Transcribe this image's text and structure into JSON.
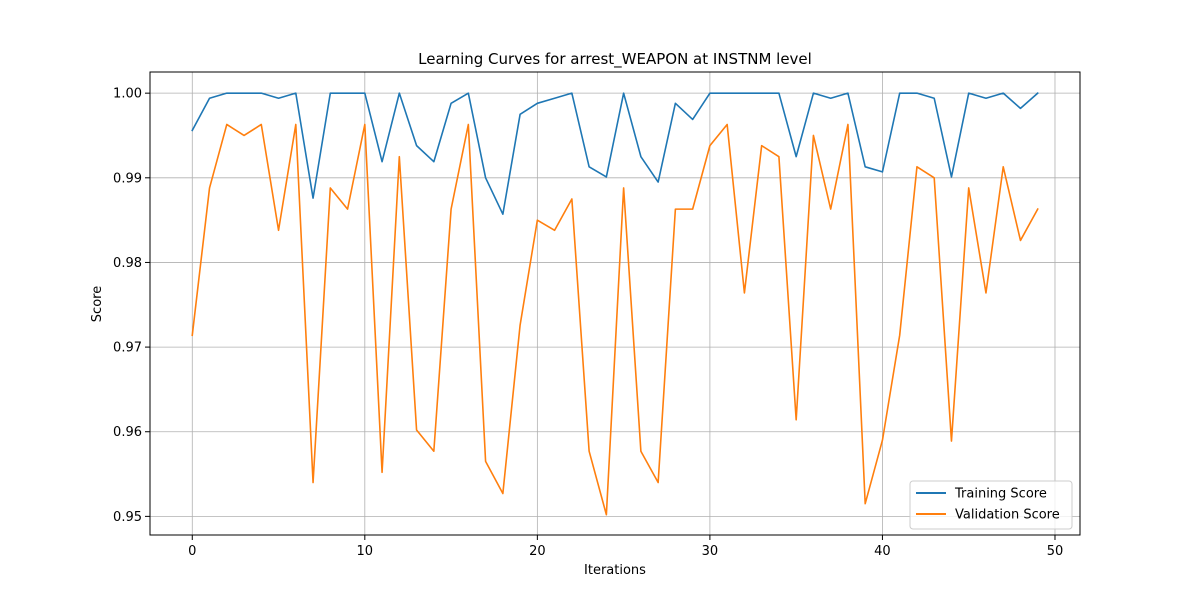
{
  "chart_data": {
    "type": "line",
    "title": "Learning Curves for arrest_WEAPON at INSTNM level",
    "xlabel": "Iterations",
    "ylabel": "Score",
    "xlim": [
      -2.45,
      51.45
    ],
    "ylim": [
      0.9478,
      1.0025
    ],
    "xticks": [
      0,
      10,
      20,
      30,
      40,
      50
    ],
    "xtick_labels": [
      "0",
      "10",
      "20",
      "30",
      "40",
      "50"
    ],
    "yticks": [
      0.95,
      0.96,
      0.97,
      0.98,
      0.99,
      1.0
    ],
    "ytick_labels": [
      "0.95",
      "0.96",
      "0.97",
      "0.98",
      "0.99",
      "1.00"
    ],
    "grid": true,
    "legend_position": "bottom-right",
    "x": [
      0,
      1,
      2,
      3,
      4,
      5,
      6,
      7,
      8,
      9,
      10,
      11,
      12,
      13,
      14,
      15,
      16,
      17,
      18,
      19,
      20,
      21,
      22,
      23,
      24,
      25,
      26,
      27,
      28,
      29,
      30,
      31,
      32,
      33,
      34,
      35,
      36,
      37,
      38,
      39,
      40,
      41,
      42,
      43,
      44,
      45,
      46,
      47,
      48,
      49
    ],
    "series": [
      {
        "name": "Training Score",
        "color": "#1f77b4",
        "values": [
          0.9956,
          0.9994,
          1.0,
          1.0,
          1.0,
          0.9994,
          1.0,
          0.9876,
          1.0,
          1.0,
          1.0,
          0.9919,
          1.0,
          0.9938,
          0.9919,
          0.9988,
          1.0,
          0.99,
          0.9857,
          0.9975,
          0.9988,
          0.9994,
          1.0,
          0.9913,
          0.9901,
          1.0,
          0.9925,
          0.9895,
          0.9988,
          0.9969,
          1.0,
          1.0,
          1.0,
          1.0,
          1.0,
          0.9925,
          1.0,
          0.9994,
          1.0,
          0.9913,
          0.9907,
          1.0,
          1.0,
          0.9994,
          0.9901,
          1.0,
          0.9994,
          1.0,
          0.9982,
          1.0
        ]
      },
      {
        "name": "Validation Score",
        "color": "#ff7f0e",
        "values": [
          0.9714,
          0.9888,
          0.9963,
          0.995,
          0.9963,
          0.9838,
          0.9963,
          0.954,
          0.9888,
          0.9863,
          0.9963,
          0.9552,
          0.9925,
          0.9602,
          0.9577,
          0.9863,
          0.9963,
          0.9565,
          0.9527,
          0.9726,
          0.985,
          0.9838,
          0.9875,
          0.9577,
          0.9502,
          0.9888,
          0.9577,
          0.954,
          0.9863,
          0.9863,
          0.9938,
          0.9963,
          0.9764,
          0.9938,
          0.9925,
          0.9614,
          0.995,
          0.9863,
          0.9963,
          0.9515,
          0.959,
          0.9714,
          0.9913,
          0.99,
          0.9589,
          0.9888,
          0.9764,
          0.9913,
          0.9826,
          0.9863
        ]
      }
    ]
  }
}
